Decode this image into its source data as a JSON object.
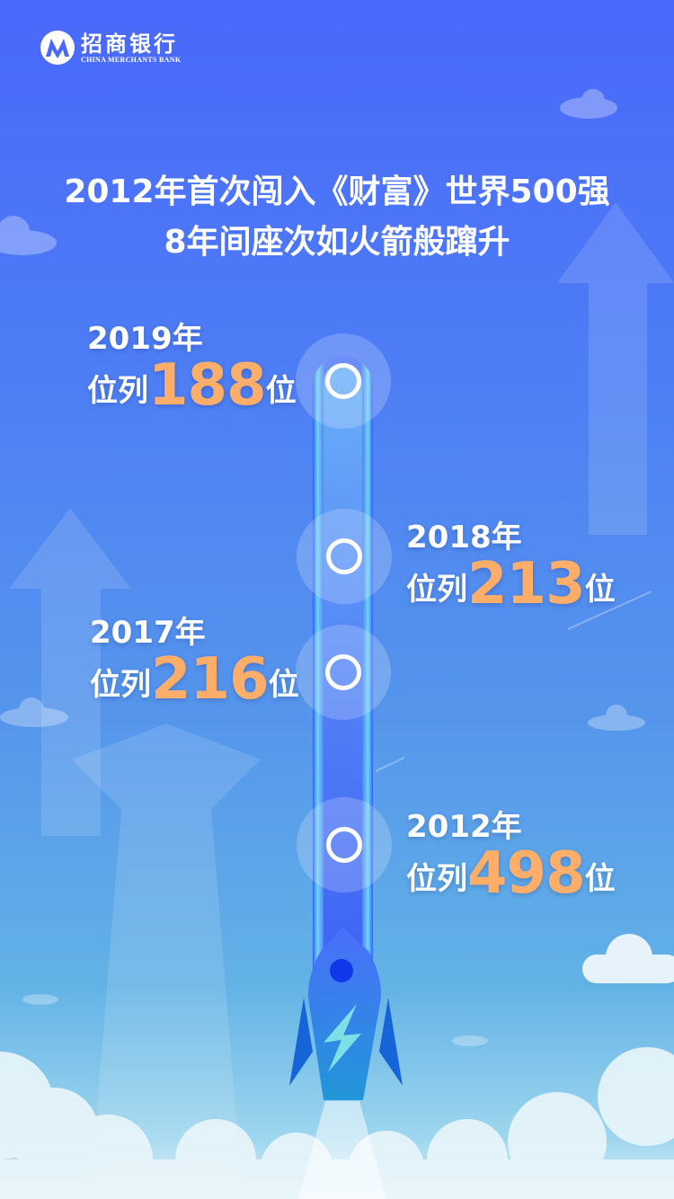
{
  "logo": {
    "name_cn": "招商银行",
    "name_en": "CHINA MERCHANTS BANK"
  },
  "headline": {
    "line1": "2012年首次闯入《财富》世界500强",
    "line2": "8年间座次如火箭般蹿升"
  },
  "milestones": [
    {
      "year": "2019年",
      "prefix": "位列",
      "rank": "188",
      "suffix": "位"
    },
    {
      "year": "2018年",
      "prefix": "位列",
      "rank": "213",
      "suffix": "位"
    },
    {
      "year": "2017年",
      "prefix": "位列",
      "rank": "216",
      "suffix": "位"
    },
    {
      "year": "2012年",
      "prefix": "位列",
      "rank": "498",
      "suffix": "位"
    }
  ],
  "colors": {
    "accent": "#ffae6a",
    "background": "#4a68fb",
    "rocket": "#3b6cf6"
  }
}
